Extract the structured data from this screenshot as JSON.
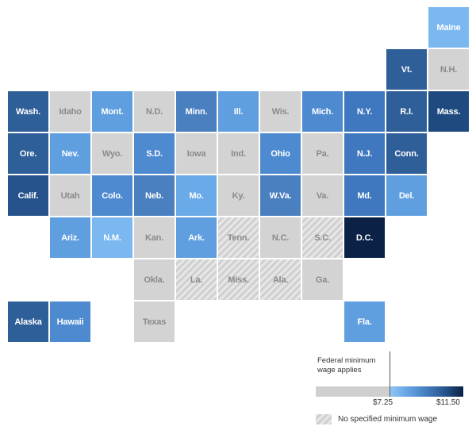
{
  "map": {
    "tiles": [
      {
        "label": "Maine",
        "col": 10,
        "row": 0,
        "style": "light",
        "color": "#7cb8f0"
      },
      {
        "label": "Vt.",
        "col": 9,
        "row": 1,
        "style": "dark",
        "color": "#2f5f98"
      },
      {
        "label": "N.H.",
        "col": 10,
        "row": 1,
        "style": "gray"
      },
      {
        "label": "Wash.",
        "col": 0,
        "row": 2,
        "style": "dark",
        "color": "#2f5f98"
      },
      {
        "label": "Idaho",
        "col": 1,
        "row": 2,
        "style": "gray"
      },
      {
        "label": "Mont.",
        "col": 2,
        "row": 2,
        "style": "light",
        "color": "#5f9fdf"
      },
      {
        "label": "N.D.",
        "col": 3,
        "row": 2,
        "style": "gray"
      },
      {
        "label": "Minn.",
        "col": 4,
        "row": 2,
        "style": "light",
        "color": "#4a7fc0"
      },
      {
        "label": "Ill.",
        "col": 5,
        "row": 2,
        "style": "light",
        "color": "#5f9fdf"
      },
      {
        "label": "Wis.",
        "col": 6,
        "row": 2,
        "style": "gray"
      },
      {
        "label": "Mich.",
        "col": 7,
        "row": 2,
        "style": "light",
        "color": "#4d8ad0"
      },
      {
        "label": "N.Y.",
        "col": 8,
        "row": 2,
        "style": "light",
        "color": "#3f78bf"
      },
      {
        "label": "R.I.",
        "col": 9,
        "row": 2,
        "style": "dark",
        "color": "#2f5f98"
      },
      {
        "label": "Mass.",
        "col": 10,
        "row": 2,
        "style": "dark",
        "color": "#1f4a80"
      },
      {
        "label": "Ore.",
        "col": 0,
        "row": 3,
        "style": "dark",
        "color": "#2f5f98"
      },
      {
        "label": "Nev.",
        "col": 1,
        "row": 3,
        "style": "light",
        "color": "#5f9fdf"
      },
      {
        "label": "Wyo.",
        "col": 2,
        "row": 3,
        "style": "gray"
      },
      {
        "label": "S.D.",
        "col": 3,
        "row": 3,
        "style": "light",
        "color": "#4d8ad0"
      },
      {
        "label": "Iowa",
        "col": 4,
        "row": 3,
        "style": "gray"
      },
      {
        "label": "Ind.",
        "col": 5,
        "row": 3,
        "style": "gray"
      },
      {
        "label": "Ohio",
        "col": 6,
        "row": 3,
        "style": "light",
        "color": "#4d8ad0"
      },
      {
        "label": "Pa.",
        "col": 7,
        "row": 3,
        "style": "gray"
      },
      {
        "label": "N.J.",
        "col": 8,
        "row": 3,
        "style": "light",
        "color": "#3f78bf"
      },
      {
        "label": "Conn.",
        "col": 9,
        "row": 3,
        "style": "dark",
        "color": "#2f5f98"
      },
      {
        "label": "Calif.",
        "col": 0,
        "row": 4,
        "style": "dark",
        "color": "#25528b"
      },
      {
        "label": "Utah",
        "col": 1,
        "row": 4,
        "style": "gray"
      },
      {
        "label": "Colo.",
        "col": 2,
        "row": 4,
        "style": "light",
        "color": "#4d8ad0"
      },
      {
        "label": "Neb.",
        "col": 3,
        "row": 4,
        "style": "light",
        "color": "#4a7fc0"
      },
      {
        "label": "Mo.",
        "col": 4,
        "row": 4,
        "style": "light",
        "color": "#6aaae8"
      },
      {
        "label": "Ky.",
        "col": 5,
        "row": 4,
        "style": "gray"
      },
      {
        "label": "W.Va.",
        "col": 6,
        "row": 4,
        "style": "light",
        "color": "#4a7fc0"
      },
      {
        "label": "Va.",
        "col": 7,
        "row": 4,
        "style": "gray"
      },
      {
        "label": "Md.",
        "col": 8,
        "row": 4,
        "style": "light",
        "color": "#3f78bf"
      },
      {
        "label": "Del.",
        "col": 9,
        "row": 4,
        "style": "light",
        "color": "#5f9fdf"
      },
      {
        "label": "Ariz.",
        "col": 1,
        "row": 5,
        "style": "light",
        "color": "#5f9fdf"
      },
      {
        "label": "N.M.",
        "col": 2,
        "row": 5,
        "style": "light",
        "color": "#7cb8f0"
      },
      {
        "label": "Kan.",
        "col": 3,
        "row": 5,
        "style": "gray"
      },
      {
        "label": "Ark.",
        "col": 4,
        "row": 5,
        "style": "light",
        "color": "#5f9fdf"
      },
      {
        "label": "Tenn.",
        "col": 5,
        "row": 5,
        "style": "hatch"
      },
      {
        "label": "N.C.",
        "col": 6,
        "row": 5,
        "style": "gray"
      },
      {
        "label": "S.C.",
        "col": 7,
        "row": 5,
        "style": "hatch"
      },
      {
        "label": "D.C.",
        "col": 8,
        "row": 5,
        "style": "dark",
        "color": "#0b2246"
      },
      {
        "label": "Okla.",
        "col": 3,
        "row": 6,
        "style": "gray"
      },
      {
        "label": "La.",
        "col": 4,
        "row": 6,
        "style": "hatch"
      },
      {
        "label": "Miss.",
        "col": 5,
        "row": 6,
        "style": "hatch"
      },
      {
        "label": "Ala.",
        "col": 6,
        "row": 6,
        "style": "hatch"
      },
      {
        "label": "Ga.",
        "col": 7,
        "row": 6,
        "style": "gray"
      },
      {
        "label": "Alaska",
        "col": 0,
        "row": 7,
        "style": "dark",
        "color": "#2f5f98"
      },
      {
        "label": "Hawaii",
        "col": 1,
        "row": 7,
        "style": "light",
        "color": "#4d8ad0"
      },
      {
        "label": "Texas",
        "col": 3,
        "row": 7,
        "style": "gray"
      },
      {
        "label": "Fla.",
        "col": 8,
        "row": 7,
        "style": "light",
        "color": "#5f9fdf"
      }
    ]
  },
  "legend": {
    "title": "Federal minimum wage applies",
    "min_label": "$7.25",
    "max_label": "$11.50",
    "hatch_label": "No specified minimum wage",
    "scale": {
      "min": 7.25,
      "max": 11.5,
      "gray_color": "#cfcfcf",
      "low_color": "#8ec5f4",
      "high_color": "#0b2246"
    }
  }
}
